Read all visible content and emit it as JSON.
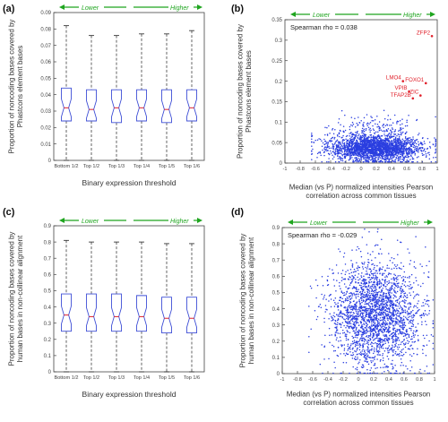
{
  "colors": {
    "box": "#3f4fd6",
    "median": "#e0202a",
    "whisker": "#222222",
    "arrow": "#1fa51f",
    "scatter": "#2b3fe0",
    "highlight": "#e0202a",
    "axis": "#444444"
  },
  "chart_data": [
    {
      "panel": "(a)",
      "type": "box",
      "arrow_low": "Lower",
      "arrow_high": "Higher",
      "ylabel": "Proportion of noncoding bases covered by Phastcons element bases",
      "xlabel": "Binary expression threshold",
      "categories": [
        "Bottom 1/2",
        "Top 1/2",
        "Top 1/3",
        "Top 1/4",
        "Top 1/5",
        "Top 1/6"
      ],
      "ylim": [
        0,
        0.09
      ],
      "yticks": [
        "0",
        "0.01",
        "0.02",
        "0.03",
        "0.04",
        "0.05",
        "0.06",
        "0.07",
        "0.08",
        "0.09"
      ],
      "boxes": [
        {
          "min": 0.0,
          "q1": 0.024,
          "median": 0.032,
          "q3": 0.044,
          "max": 0.082
        },
        {
          "min": 0.0,
          "q1": 0.024,
          "median": 0.031,
          "q3": 0.043,
          "max": 0.076
        },
        {
          "min": 0.0,
          "q1": 0.023,
          "median": 0.032,
          "q3": 0.043,
          "max": 0.076
        },
        {
          "min": 0.0,
          "q1": 0.024,
          "median": 0.032,
          "q3": 0.043,
          "max": 0.077
        },
        {
          "min": 0.0,
          "q1": 0.023,
          "median": 0.031,
          "q3": 0.043,
          "max": 0.077
        },
        {
          "min": 0.0,
          "q1": 0.024,
          "median": 0.032,
          "q3": 0.043,
          "max": 0.079
        }
      ]
    },
    {
      "panel": "(b)",
      "type": "scatter",
      "arrow_low": "Lower",
      "arrow_high": "Higher",
      "annotation": "Spearman rho = 0.038",
      "ylabel": "Proportion of noncoding bases covered by Phastcons element bases",
      "xlabel": "Median (vs P) normalized intensities Pearson correlation across common tissues",
      "xlim": [
        -1,
        1
      ],
      "ylim": [
        0,
        0.35
      ],
      "xticks": [
        "-1",
        "-0.8",
        "-0.6",
        "-0.4",
        "-0.2",
        "0",
        "0.2",
        "0.4",
        "0.6",
        "0.8",
        "1"
      ],
      "yticks": [
        "0",
        "0.05",
        "0.1",
        "0.15",
        "0.2",
        "0.25",
        "0.3",
        "0.35"
      ],
      "points": {
        "count": 2600,
        "x_mean": 0.18,
        "x_sd": 0.3,
        "y_mode": 0.035,
        "y_spread": 0.028
      },
      "highlighted": [
        {
          "label": "ZFP2",
          "x": 0.93,
          "y": 0.31
        },
        {
          "label": "LMO4",
          "x": 0.55,
          "y": 0.2
        },
        {
          "label": "FOXO1",
          "x": 0.85,
          "y": 0.195
        },
        {
          "label": "VPIB",
          "x": 0.63,
          "y": 0.175
        },
        {
          "label": "ZIC",
          "x": 0.78,
          "y": 0.165
        },
        {
          "label": "TFAP2B",
          "x": 0.68,
          "y": 0.158
        }
      ]
    },
    {
      "panel": "(c)",
      "type": "box",
      "arrow_low": "Lower",
      "arrow_high": "Higher",
      "ylabel": "Proportion of noncoding bases covered by human bases in non-collinear alignment",
      "xlabel": "Binary expression threshold",
      "categories": [
        "Bottom 1/2",
        "Top 1/2",
        "Top 1/3",
        "Top 1/4",
        "Top 1/5",
        "Top 1/6"
      ],
      "ylim": [
        0,
        0.9
      ],
      "yticks": [
        "0",
        "0.1",
        "0.2",
        "0.3",
        "0.4",
        "0.5",
        "0.6",
        "0.7",
        "0.8",
        "0.9"
      ],
      "boxes": [
        {
          "min": 0.0,
          "q1": 0.25,
          "median": 0.35,
          "q3": 0.48,
          "max": 0.81
        },
        {
          "min": 0.0,
          "q1": 0.25,
          "median": 0.34,
          "q3": 0.48,
          "max": 0.8
        },
        {
          "min": 0.0,
          "q1": 0.25,
          "median": 0.34,
          "q3": 0.48,
          "max": 0.8
        },
        {
          "min": 0.0,
          "q1": 0.25,
          "median": 0.34,
          "q3": 0.47,
          "max": 0.8
        },
        {
          "min": 0.0,
          "q1": 0.24,
          "median": 0.33,
          "q3": 0.46,
          "max": 0.79
        },
        {
          "min": 0.0,
          "q1": 0.24,
          "median": 0.33,
          "q3": 0.46,
          "max": 0.79
        }
      ]
    },
    {
      "panel": "(d)",
      "type": "scatter",
      "arrow_low": "Lower",
      "arrow_high": "Higher",
      "annotation": "Spearman rho = -0.029",
      "ylabel": "Proportion of noncoding bases covered by human bases in non-collinear alignment",
      "xlabel": "Median (vs P) normalized intensities Pearson correlation across common tissues",
      "xlim": [
        -1,
        1
      ],
      "ylim": [
        0,
        0.9
      ],
      "xticks": [
        "-1",
        "-0.8",
        "-0.6",
        "-0.4",
        "-0.2",
        "0",
        "0.2",
        "0.4",
        "0.6",
        "0.8",
        "1"
      ],
      "yticks": [
        "0",
        "0.1",
        "0.2",
        "0.3",
        "0.4",
        "0.5",
        "0.6",
        "0.7",
        "0.8",
        "0.9"
      ],
      "points": {
        "count": 2400,
        "x_mean": 0.22,
        "x_sd": 0.3,
        "y_mean": 0.36,
        "y_sd": 0.16
      },
      "highlighted": []
    }
  ]
}
